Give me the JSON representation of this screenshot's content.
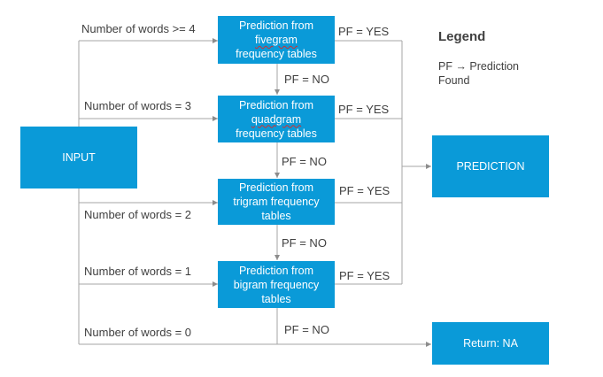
{
  "nodes": {
    "input": "INPUT",
    "fivegram": {
      "pre": "Prediction from",
      "mid": "fivegram",
      "post": "frequency tables"
    },
    "quadgram": {
      "pre": "Prediction from",
      "mid": "quadgram",
      "post": "frequency tables"
    },
    "trigram": {
      "l1": "Prediction from",
      "l2": "trigram frequency",
      "l3": "tables"
    },
    "bigram": {
      "l1": "Prediction from",
      "l2": "bigram frequency",
      "l3": "tables"
    },
    "prediction": "PREDICTION",
    "return_na": "Return: NA"
  },
  "edge_labels": {
    "words_ge4": "Number of words >= 4",
    "words_eq3": "Number of words = 3",
    "words_eq2": "Number of words = 2",
    "words_eq1": "Number of words = 1",
    "words_eq0": "Number of words = 0",
    "pf_yes": "PF = YES",
    "pf_no": "PF = NO"
  },
  "legend": {
    "title": "Legend",
    "line1": "PF → Prediction",
    "line2": "Found"
  },
  "colors": {
    "node_fill": "#0a9ad8",
    "node_text": "#ffffff",
    "line": "#a6a6a6"
  }
}
